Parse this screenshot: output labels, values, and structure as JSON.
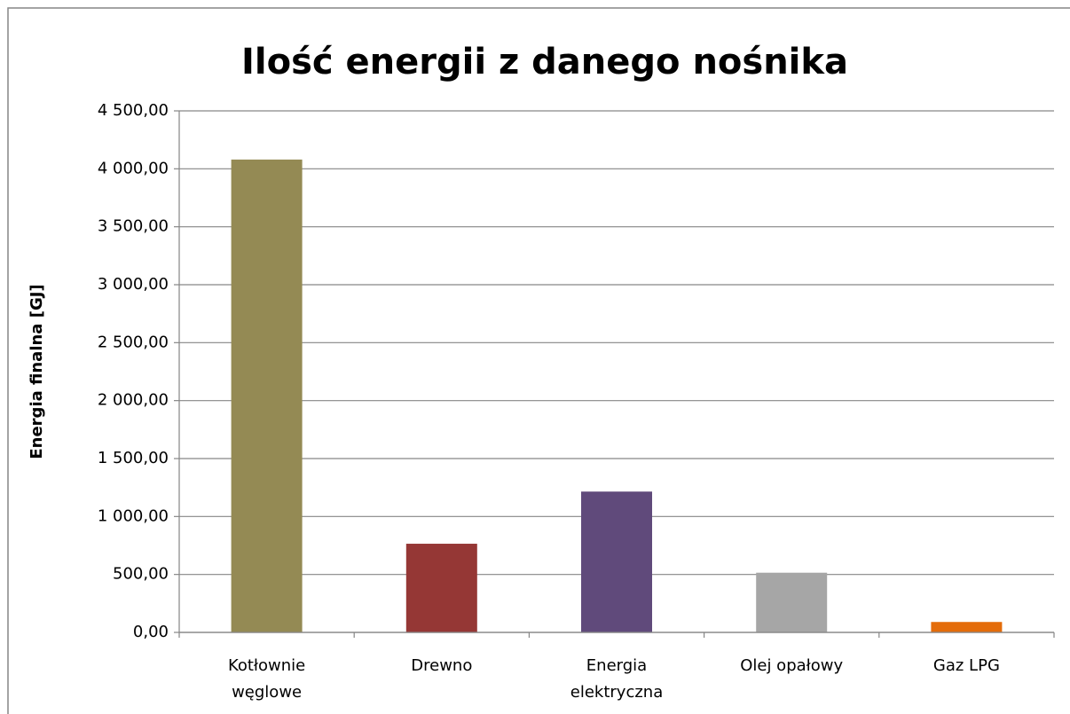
{
  "chart_data": {
    "type": "bar",
    "title": "Ilość energii z danego nośnika",
    "y_label": "Energia finalna [GJ]",
    "categories": [
      "Kotłownie węglowe",
      "Drewno",
      "Energia elektryczna",
      "Olej opałowy",
      "Gaz LPG"
    ],
    "values": [
      4080,
      765,
      1215,
      515,
      90
    ],
    "colors": [
      "#948a54",
      "#953735",
      "#604a7b",
      "#a6a6a6",
      "#e46c0a"
    ],
    "ylim": [
      0,
      4500
    ],
    "yticks": [
      {
        "value": 0,
        "label": "0,00"
      },
      {
        "value": 500,
        "label": "500,00"
      },
      {
        "value": 1000,
        "label": "1 000,00"
      },
      {
        "value": 1500,
        "label": "1 500,00"
      },
      {
        "value": 2000,
        "label": "2 000,00"
      },
      {
        "value": 2500,
        "label": "2 500,00"
      },
      {
        "value": 3000,
        "label": "3 000,00"
      },
      {
        "value": 3500,
        "label": "3 500,00"
      },
      {
        "value": 4000,
        "label": "4 000,00"
      },
      {
        "value": 4500,
        "label": "4 500,00"
      }
    ],
    "grid": true
  }
}
